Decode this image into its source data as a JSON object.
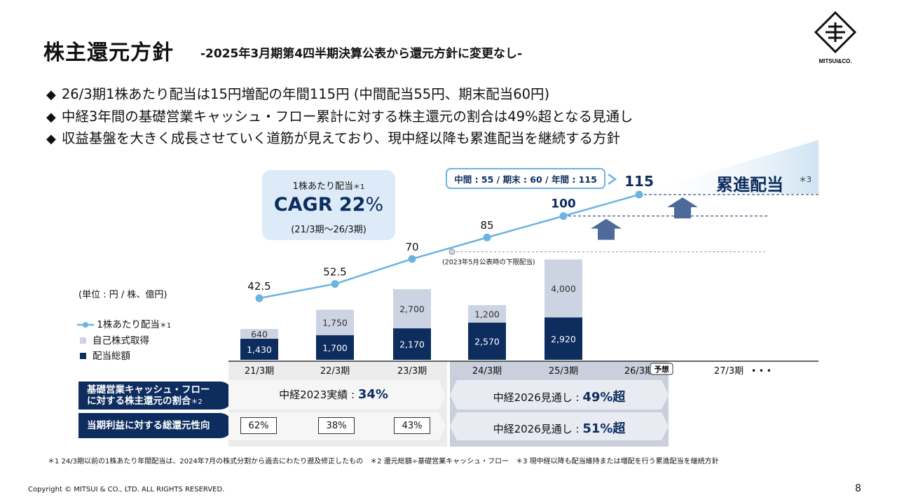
{
  "header": {
    "title": "株主還元方針",
    "subtitle": "-2025年3月期第4四半期決算公表から還元方針に変更なし-",
    "logo_text": "MITSUI&CO."
  },
  "bullets": [
    "26/3期1株あたり配当は15円増配の年間115円 (中間配当55円、期末配当60円)",
    "中経3年間の基礎営業キャッシュ・フロー累計に対する株主還元の割合は49%超となる見通し",
    "収益基盤を大きく成長させていく道筋が見えており、現中経以降も累進配当を継続する方針"
  ],
  "cagr": {
    "top": "1株あたり配当",
    "top_note": "＊1",
    "main": "CAGR 22",
    "main_unit": "%",
    "bottom": "(21/3期〜26/3期)"
  },
  "callout": "中間 : 55 / 期末 : 60 / 年間 : 115",
  "progressive": {
    "label": "累進配当",
    "note": "＊3"
  },
  "unit_label": "(単位 : 円 / 株、億円)",
  "legend": [
    {
      "label": "1株あたり配当",
      "note": "＊1",
      "color": "#6cb3e2",
      "kind": "line"
    },
    {
      "label": "自己株式取得",
      "color": "#ccd3e2",
      "kind": "box"
    },
    {
      "label": "配当総額",
      "color": "#0d2d5e",
      "kind": "box"
    }
  ],
  "chart_data": {
    "type": "bar",
    "categories": [
      "21/3期",
      "22/3期",
      "23/3期",
      "24/3期",
      "25/3期",
      "26/3期",
      "27/3期"
    ],
    "forecast_badge": "予想",
    "trailing_dots": "• • •",
    "series": [
      {
        "name": "配当総額",
        "values": [
          1430,
          1700,
          2170,
          2570,
          2920,
          null,
          null
        ],
        "labels": [
          "1,430",
          "1,700",
          "2,170",
          "2,570",
          "2,920",
          "",
          ""
        ],
        "color": "#0d2d5e"
      },
      {
        "name": "自己株式取得",
        "values": [
          640,
          1750,
          2700,
          1200,
          4000,
          null,
          null
        ],
        "labels": [
          "640",
          "1,750",
          "2,700",
          "1,200",
          "4,000",
          "",
          ""
        ],
        "color": "#ccd3e2"
      },
      {
        "name": "1株あたり配当",
        "type": "line",
        "values": [
          42.5,
          52.5,
          70,
          85,
          100,
          115,
          null
        ],
        "labels": [
          "42.5",
          "52.5",
          "70",
          "85",
          "100",
          "115",
          ""
        ],
        "color": "#6cb3e2"
      }
    ],
    "annotation": "(2023年5月公表時の下限配当)",
    "annotation_value": 75,
    "stack_scale_max": 7000,
    "dividend_scale": [
      0,
      120
    ]
  },
  "rows": [
    {
      "label_line1": "基礎営業キャッシュ・フロー",
      "label_line2": "に対する株主還元の割合",
      "label_note": "＊2",
      "left_text": "中経2023実績 : ",
      "left_value": "34%",
      "right_text": "中経2026見通し : ",
      "right_value": "49%超"
    },
    {
      "label_line1": "当期利益に対する総還元性向",
      "values": [
        "62%",
        "38%",
        "43%"
      ],
      "right_text": "中経2026見通し : ",
      "right_value": "51%超"
    }
  ],
  "footnote": "＊1 24/3期以前の1株あたり年間配当は、2024年7月の株式分割から過去にわたり遡及修正したもの　＊2 還元総額÷基礎営業キャッシュ・フロー　＊3 現中経以降も配当維持または増配を行う累進配当を継続方針",
  "copyright": "Copyright © MITSUI & CO., LTD. ALL RIGHTS RESERVED.",
  "page_number": "8"
}
